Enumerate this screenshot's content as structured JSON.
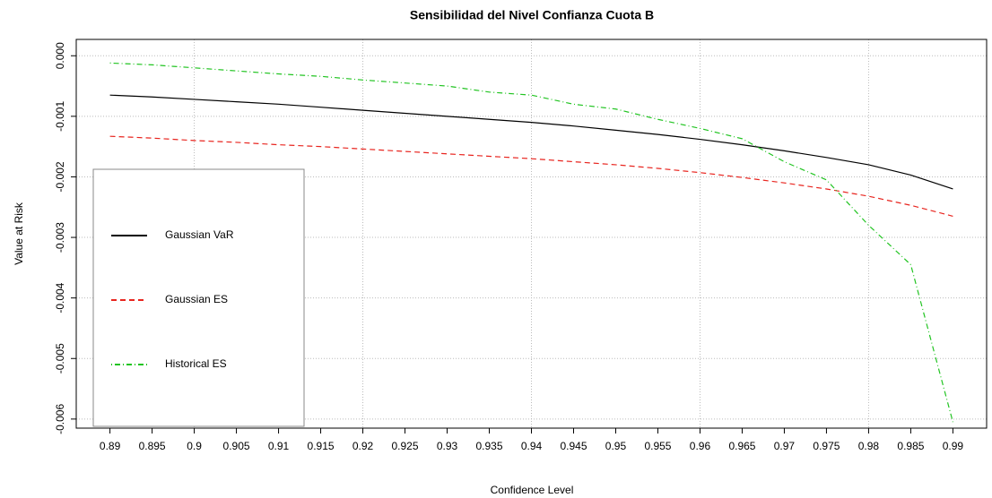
{
  "chart_data": {
    "type": "line",
    "title": "Sensibilidad del Nivel Confianza Cuota B",
    "x_label": "Confidence Level",
    "y_label": "Value at Risk",
    "x": [
      0.89,
      0.895,
      0.9,
      0.905,
      0.91,
      0.915,
      0.92,
      0.925,
      0.93,
      0.935,
      0.94,
      0.945,
      0.95,
      0.955,
      0.96,
      0.965,
      0.97,
      0.975,
      0.98,
      0.985,
      0.99
    ],
    "series": [
      {
        "name": "Gaussian VaR",
        "color": "#000000",
        "linestyle": "solid",
        "values": [
          -0.00065,
          -0.00068,
          -0.00072,
          -0.00076,
          -0.0008,
          -0.00085,
          -0.0009,
          -0.00095,
          -0.001,
          -0.00105,
          -0.0011,
          -0.00116,
          -0.00123,
          -0.0013,
          -0.00138,
          -0.00147,
          -0.00157,
          -0.00168,
          -0.0018,
          -0.00197,
          -0.0022
        ]
      },
      {
        "name": "Gaussian ES",
        "color": "#e8251f",
        "linestyle": "dashed",
        "values": [
          -0.00133,
          -0.00136,
          -0.0014,
          -0.00143,
          -0.00147,
          -0.0015,
          -0.00154,
          -0.00158,
          -0.00162,
          -0.00166,
          -0.0017,
          -0.00175,
          -0.0018,
          -0.00186,
          -0.00193,
          -0.00201,
          -0.0021,
          -0.0022,
          -0.00232,
          -0.00247,
          -0.00265
        ]
      },
      {
        "name": "Historical ES",
        "color": "#22c422",
        "linestyle": "dotdash",
        "values": [
          -0.00012,
          -0.00015,
          -0.0002,
          -0.00025,
          -0.0003,
          -0.00034,
          -0.0004,
          -0.00045,
          -0.0005,
          -0.0006,
          -0.00065,
          -0.0008,
          -0.00088,
          -0.00105,
          -0.0012,
          -0.00137,
          -0.00175,
          -0.00205,
          -0.0028,
          -0.00345,
          -0.00605
        ]
      }
    ],
    "xlim": [
      0.886,
      0.994
    ],
    "ylim": [
      -0.00615,
      0.00027
    ],
    "xticks": [
      0.89,
      0.895,
      0.9,
      0.905,
      0.91,
      0.915,
      0.92,
      0.925,
      0.93,
      0.935,
      0.94,
      0.945,
      0.95,
      0.955,
      0.96,
      0.965,
      0.97,
      0.975,
      0.98,
      0.985,
      0.99
    ],
    "yticks": [
      {
        "value": 0,
        "label": "0.000"
      },
      {
        "value": -0.001,
        "label": "-0.001"
      },
      {
        "value": -0.002,
        "label": "-0.002"
      },
      {
        "value": -0.003,
        "label": "-0.003"
      },
      {
        "value": -0.004,
        "label": "-0.004"
      },
      {
        "value": -0.005,
        "label": "-0.005"
      },
      {
        "value": -0.006,
        "label": "-0.006"
      }
    ],
    "xgrid": [
      0.9,
      0.92,
      0.94,
      0.96,
      0.98
    ],
    "grid": true,
    "legend": "bottom-left"
  }
}
